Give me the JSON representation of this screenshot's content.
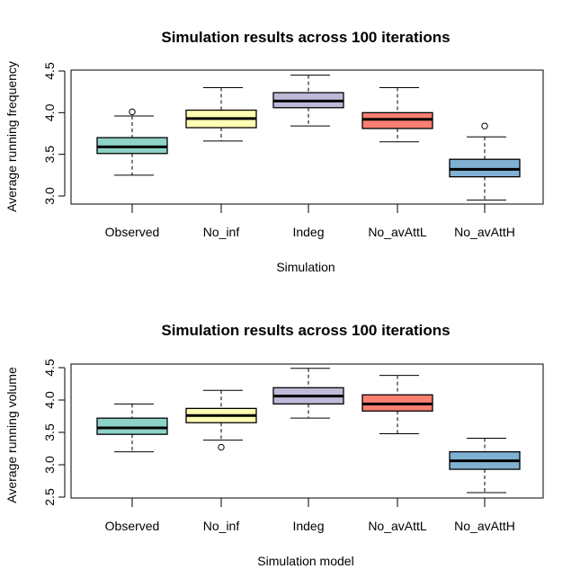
{
  "chart_data": [
    {
      "type": "boxplot",
      "title": "Simulation results across 100 iterations",
      "xlabel": "Simulation",
      "ylabel": "Average running frequency",
      "ylim": [
        2.9,
        4.5
      ],
      "yticks": [
        "3.0",
        "3.5",
        "4.0",
        "4.5"
      ],
      "ytick_values": [
        3.0,
        3.5,
        4.0,
        4.5
      ],
      "grid": false,
      "categories": [
        "Observed",
        "No_inf",
        "Indeg",
        "No_avAttL",
        "No_avAttH"
      ],
      "colors": [
        "#8DD3C7",
        "#FFFFB3",
        "#BEBADA",
        "#FB8072",
        "#80B1D3"
      ],
      "boxes": [
        {
          "name": "Observed",
          "whisker_low": 3.25,
          "q1": 3.51,
          "median": 3.59,
          "q3": 3.7,
          "whisker_high": 3.96,
          "outliers": [
            4.01
          ]
        },
        {
          "name": "No_inf",
          "whisker_low": 3.66,
          "q1": 3.82,
          "median": 3.93,
          "q3": 4.03,
          "whisker_high": 4.3,
          "outliers": []
        },
        {
          "name": "Indeg",
          "whisker_low": 3.84,
          "q1": 4.06,
          "median": 4.14,
          "q3": 4.24,
          "whisker_high": 4.45,
          "outliers": []
        },
        {
          "name": "No_avAttL",
          "whisker_low": 3.65,
          "q1": 3.81,
          "median": 3.92,
          "q3": 4.0,
          "whisker_high": 4.3,
          "outliers": []
        },
        {
          "name": "No_avAttH",
          "whisker_low": 2.95,
          "q1": 3.23,
          "median": 3.32,
          "q3": 3.44,
          "whisker_high": 3.71,
          "outliers": [
            3.84
          ]
        }
      ]
    },
    {
      "type": "boxplot",
      "title": "Simulation results across 100 iterations",
      "xlabel": "Simulation model",
      "ylabel": "Average running volume",
      "ylim": [
        2.5,
        4.5
      ],
      "yticks": [
        "2.5",
        "3.0",
        "3.5",
        "4.0",
        "4.5"
      ],
      "ytick_values": [
        2.5,
        3.0,
        3.5,
        4.0,
        4.5
      ],
      "grid": false,
      "categories": [
        "Observed",
        "No_inf",
        "Indeg",
        "No_avAttL",
        "No_avAttH"
      ],
      "colors": [
        "#8DD3C7",
        "#FFFFB3",
        "#BEBADA",
        "#FB8072",
        "#80B1D3"
      ],
      "boxes": [
        {
          "name": "Observed",
          "whisker_low": 3.2,
          "q1": 3.47,
          "median": 3.57,
          "q3": 3.72,
          "whisker_high": 3.94,
          "outliers": []
        },
        {
          "name": "No_inf",
          "whisker_low": 3.38,
          "q1": 3.65,
          "median": 3.76,
          "q3": 3.87,
          "whisker_high": 4.15,
          "outliers": [
            3.27
          ]
        },
        {
          "name": "Indeg",
          "whisker_low": 3.72,
          "q1": 3.94,
          "median": 4.06,
          "q3": 4.19,
          "whisker_high": 4.49,
          "outliers": []
        },
        {
          "name": "No_avAttL",
          "whisker_low": 3.48,
          "q1": 3.83,
          "median": 3.94,
          "q3": 4.08,
          "whisker_high": 4.38,
          "outliers": []
        },
        {
          "name": "No_avAttH",
          "whisker_low": 2.57,
          "q1": 2.93,
          "median": 3.06,
          "q3": 3.2,
          "whisker_high": 3.41,
          "outliers": []
        }
      ]
    }
  ]
}
